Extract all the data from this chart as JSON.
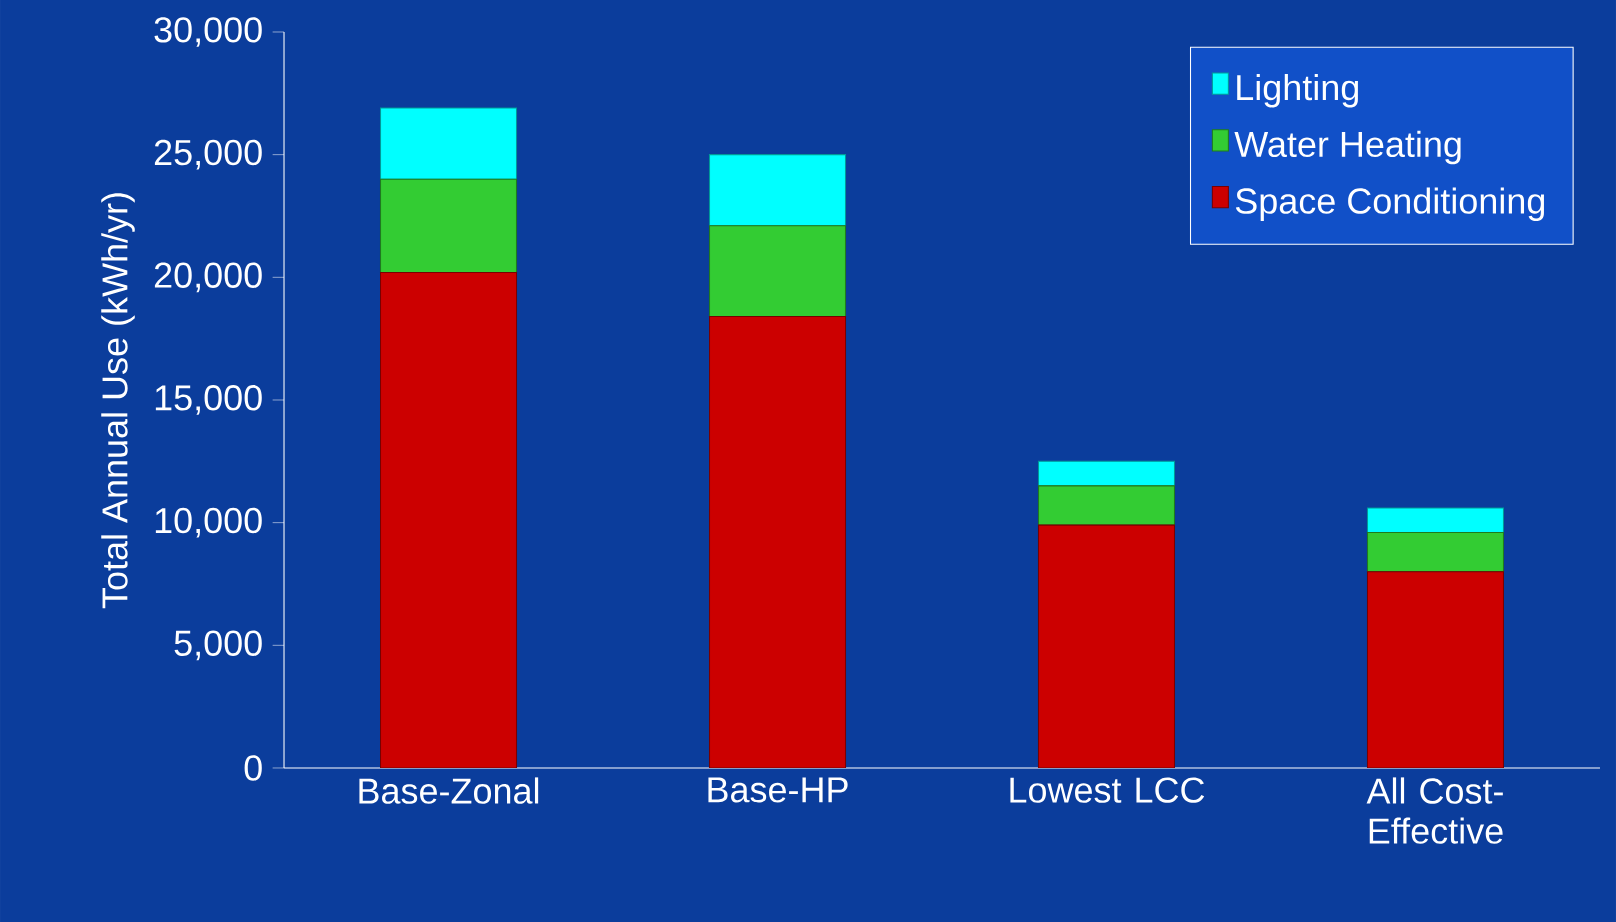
{
  "chart_data": {
    "type": "bar",
    "stacked": true,
    "ylabel": "Total Annual Use (kWh/yr)",
    "categories": [
      "Base-Zonal",
      "Base-HP",
      "Lowest LCC",
      "All Cost-Effective"
    ],
    "series": [
      {
        "name": "Space Conditioning",
        "color": "#cc0000",
        "values": [
          20200,
          18400,
          9900,
          8000
        ]
      },
      {
        "name": "Water Heating",
        "color": "#33cc33",
        "values": [
          3800,
          3700,
          1600,
          1600
        ]
      },
      {
        "name": "Lighting",
        "color": "#00ffff",
        "values": [
          2900,
          2900,
          1000,
          1000
        ]
      }
    ],
    "ylim": [
      0,
      30000
    ],
    "yticks": [
      0,
      {
        "value": 5000,
        "label": "5,000"
      },
      {
        "value": 10000,
        "label": "10,000"
      },
      {
        "value": 15000,
        "label": "15,000"
      },
      {
        "value": 20000,
        "label": "20,000"
      },
      {
        "value": 25000,
        "label": "25,000"
      },
      {
        "value": 30000,
        "label": "30,000"
      }
    ],
    "legend": "top right"
  }
}
